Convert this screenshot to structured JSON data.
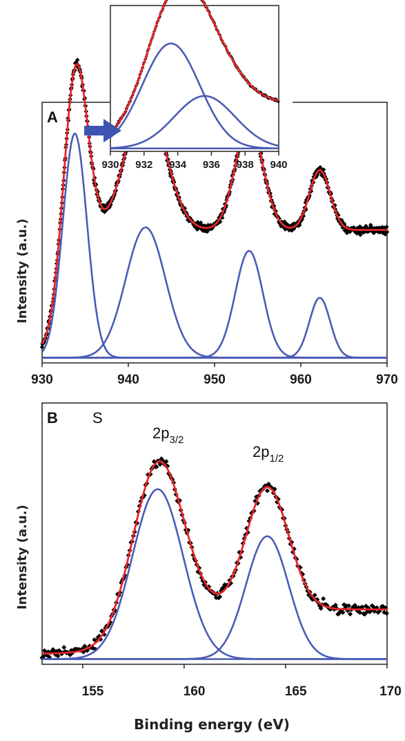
{
  "chart_data": [
    {
      "panel": "A",
      "type": "line",
      "ylabel": "Intensity (a.u.)",
      "xlim": [
        930,
        970
      ],
      "xticks": [
        930,
        940,
        950,
        960,
        970
      ],
      "ylim": [
        0,
        1
      ],
      "colors": {
        "fit": "#e8262a",
        "components": "#4a5bb5",
        "data": "#000000"
      },
      "components": [
        {
          "center": 933.8,
          "width": 1.4,
          "height": 0.86
        },
        {
          "center": 942.0,
          "width": 2.3,
          "height": 0.5
        },
        {
          "center": 954.0,
          "width": 1.6,
          "height": 0.41
        },
        {
          "center": 962.2,
          "width": 1.2,
          "height": 0.23
        }
      ],
      "fit_background": {
        "start": 0.035,
        "end": 0.51
      },
      "baseline": 0.02
    },
    {
      "panel": "A-inset",
      "type": "line",
      "xlim": [
        930,
        940
      ],
      "xticks": [
        930,
        932,
        934,
        936,
        938,
        940
      ],
      "ylim": [
        0,
        1
      ],
      "colors": {
        "fit": "#e8262a",
        "components": "#4a5bb5",
        "data": "#000000"
      },
      "components": [
        {
          "center": 933.6,
          "width": 1.7,
          "height": 0.72
        },
        {
          "center": 935.6,
          "width": 1.8,
          "height": 0.36
        }
      ],
      "fit_background": {
        "start": 0.04,
        "end": 0.33
      },
      "baseline": 0.02,
      "arrow": "pointing right"
    },
    {
      "panel": "B",
      "type": "line",
      "xlabel": "Binding energy (eV)",
      "ylabel": "Intensity (a.u.)",
      "xlim": [
        153,
        170
      ],
      "xticks": [
        155,
        160,
        165,
        170
      ],
      "ylim": [
        0,
        1
      ],
      "colors": {
        "fit": "#e8262a",
        "components": "#4a5bb5",
        "data": "#000000"
      },
      "components": [
        {
          "center": 158.7,
          "width": 1.25,
          "height": 0.65
        },
        {
          "center": 164.1,
          "width": 1.05,
          "height": 0.47
        }
      ],
      "fit_background": {
        "start": 0.04,
        "end": 0.21
      },
      "baseline": 0.02,
      "annotations": {
        "element": "S",
        "peak1": {
          "base": "2p",
          "sub": "3/2"
        },
        "peak2": {
          "base": "2p",
          "sub": "1/2"
        }
      }
    }
  ]
}
